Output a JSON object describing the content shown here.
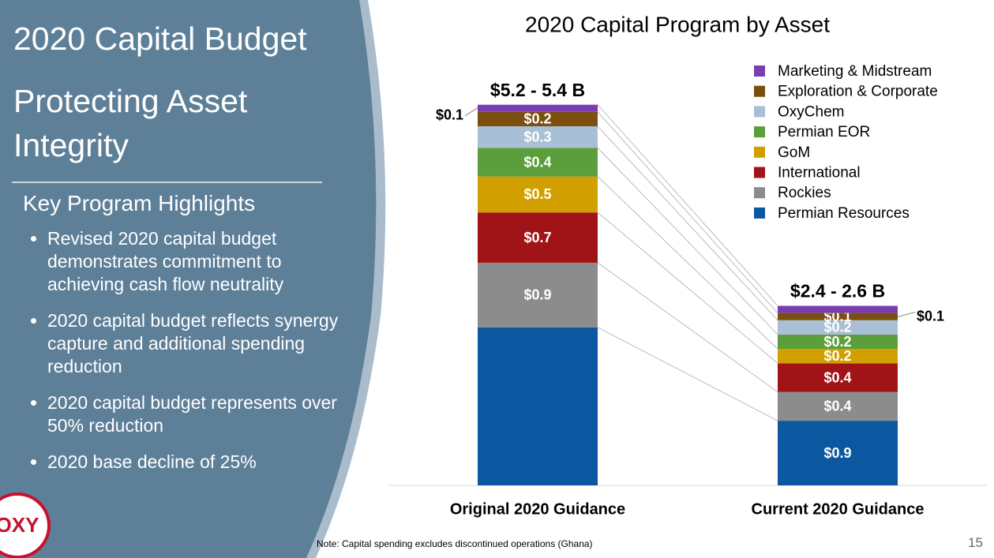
{
  "slide": {
    "title": "2020 Capital Budget",
    "subtitle": "Protecting Asset Integrity",
    "section": "Key Program Highlights",
    "bullets": [
      "Revised 2020 capital budget demonstrates commitment to achieving cash flow neutrality",
      "2020 capital budget reflects synergy capture and additional spending reduction",
      "2020 capital budget represents over 50% reduction",
      "2020 base decline of 25%"
    ],
    "note": "Note: Capital spending excludes discontinued operations (Ghana)",
    "page_number": "15",
    "logo": "OXY"
  },
  "chart_data": {
    "type": "stacked_bar",
    "title": "2020 Capital Program by Asset",
    "categories": [
      "Original 2020 Guidance",
      "Current 2020 Guidance"
    ],
    "total_labels": [
      "$5.2 - 5.4 B",
      "$2.4 - 2.6 B"
    ],
    "series": [
      {
        "name": "Permian Resources",
        "color": "#0b57a0",
        "values": [
          2.2,
          0.9
        ],
        "value_labels": [
          null,
          "$0.9"
        ]
      },
      {
        "name": "Rockies",
        "color": "#8c8c8c",
        "values": [
          0.9,
          0.4
        ],
        "value_labels": [
          "$0.9",
          "$0.4"
        ]
      },
      {
        "name": "International",
        "color": "#a01418",
        "values": [
          0.7,
          0.4
        ],
        "value_labels": [
          "$0.7",
          "$0.4"
        ]
      },
      {
        "name": "GoM",
        "color": "#d29f00",
        "values": [
          0.5,
          0.2
        ],
        "value_labels": [
          "$0.5",
          "$0.2"
        ]
      },
      {
        "name": "Permian EOR",
        "color": "#5b9e3c",
        "values": [
          0.4,
          0.2
        ],
        "value_labels": [
          "$0.4",
          "$0.2"
        ]
      },
      {
        "name": "OxyChem",
        "color": "#a8bfd6",
        "values": [
          0.3,
          0.2
        ],
        "value_labels": [
          "$0.3",
          "$0.2"
        ]
      },
      {
        "name": "Exploration & Corporate",
        "color": "#7a4f10",
        "values": [
          0.2,
          0.1
        ],
        "value_labels": [
          "$0.2",
          "$0.1"
        ]
      },
      {
        "name": "Marketing & Midstream",
        "color": "#7a3db0",
        "values": [
          0.1,
          0.1
        ],
        "value_labels": [
          "$0.1",
          "$0.1"
        ]
      }
    ],
    "legend": "top-right"
  }
}
